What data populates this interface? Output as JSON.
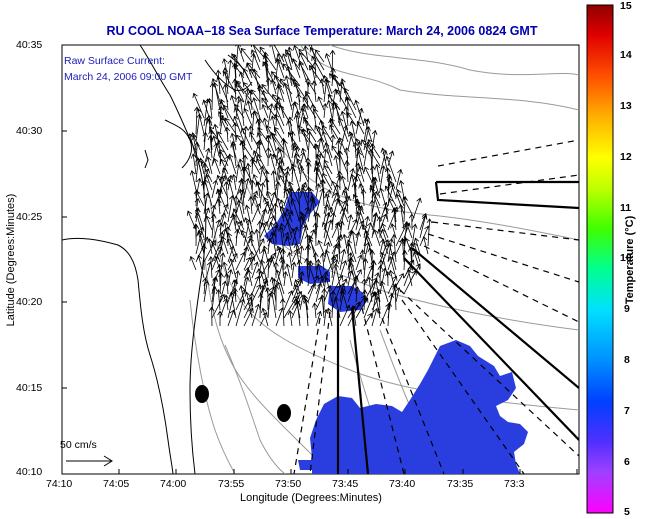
{
  "title": "RU COOL  NOAA–18  Sea Surface Temperature:  March 24, 2006 0824 GMT",
  "annotation": {
    "line1": "Raw Surface Current:",
    "line2": "March 24, 2006 09:00 GMT"
  },
  "scale_bar": {
    "label": "50 cm/s"
  },
  "axes": {
    "xlabel": "Longitude (Degrees:Minutes)",
    "ylabel": "Latitude (Degrees:Minutes)",
    "x_ticks": [
      "74:10",
      "74:05",
      "74:00",
      "73:55",
      "73:50",
      "73:45",
      "73:40",
      "73:35",
      "73:3"
    ],
    "y_ticks": [
      "40:35",
      "40:30",
      "40:25",
      "40:20",
      "40:15",
      "40:10"
    ]
  },
  "colorbar": {
    "title": "Temperature (°C)",
    "min": 5,
    "max": 15,
    "ticks": [
      "15",
      "14",
      "13",
      "12",
      "11",
      "10",
      "9",
      "8",
      "7",
      "6",
      "5"
    ]
  },
  "colors": {
    "title": "#0000b0",
    "sst_patch": "#2a3ee0",
    "coast": "#000000",
    "bathymetry": "#9a9a9a"
  },
  "map": {
    "lon_range": [
      "74:10",
      "73:33"
    ],
    "lat_range": [
      "40:10",
      "40:35"
    ],
    "features": [
      "coastline",
      "bathymetry-contours",
      "current-vectors",
      "sst-patches",
      "shipping-lanes",
      "buoys"
    ]
  }
}
